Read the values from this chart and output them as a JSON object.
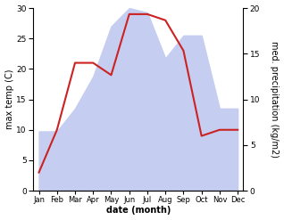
{
  "months": [
    "Jan",
    "Feb",
    "Mar",
    "Apr",
    "May",
    "Jun",
    "Jul",
    "Aug",
    "Sep",
    "Oct",
    "Nov",
    "Dec"
  ],
  "temperature": [
    3.0,
    10.0,
    21.0,
    21.0,
    19.0,
    29.0,
    29.0,
    28.0,
    23.0,
    9.0,
    10.0,
    10.0
  ],
  "precipitation": [
    6.5,
    6.5,
    9.0,
    12.5,
    18.0,
    20.0,
    19.5,
    14.5,
    17.0,
    17.0,
    9.0,
    9.0
  ],
  "temp_color": "#cc2222",
  "precip_fill_color": "#c5cef0",
  "left_ylim": [
    0,
    30
  ],
  "right_ylim": [
    0,
    20
  ],
  "left_yticks": [
    0,
    5,
    10,
    15,
    20,
    25,
    30
  ],
  "right_yticks": [
    0,
    5,
    10,
    15,
    20
  ],
  "left_ylabel": "max temp (C)",
  "right_ylabel": "med. precipitation (kg/m2)",
  "xlabel": "date (month)",
  "bg_color": "#ffffff",
  "figsize": [
    3.18,
    2.47
  ],
  "dpi": 100
}
